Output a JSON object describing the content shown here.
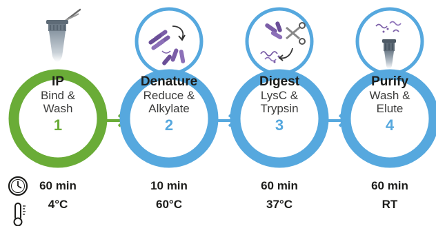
{
  "colors": {
    "green": "#6aac37",
    "blue": "#56a8de",
    "purple": "#7b5ea7",
    "tube_gray": "#7a8894",
    "text_dark": "#1d1d1b"
  },
  "icons": {
    "row_time_icon": "clock-icon",
    "row_temp_icon": "thermometer-icon"
  },
  "steps": [
    {
      "title": "IP",
      "line1": "Bind &",
      "line2": "Wash",
      "number": "1",
      "time": "60 min",
      "temp": "4°C",
      "icon": "tube-icon"
    },
    {
      "title": "Denature",
      "line1": "Reduce &",
      "line2": "Alkylate",
      "number": "2",
      "time": "10 min",
      "temp": "60°C",
      "icon": "protein-folding-icon"
    },
    {
      "title": "Digest",
      "line1": "LysC &",
      "line2": "Trypsin",
      "number": "3",
      "time": "60 min",
      "temp": "37°C",
      "icon": "scissors-icon"
    },
    {
      "title": "Purify",
      "line1": "Wash &",
      "line2": "Elute",
      "number": "4",
      "time": "60 min",
      "temp": "RT",
      "icon": "spin-column-icon"
    }
  ]
}
